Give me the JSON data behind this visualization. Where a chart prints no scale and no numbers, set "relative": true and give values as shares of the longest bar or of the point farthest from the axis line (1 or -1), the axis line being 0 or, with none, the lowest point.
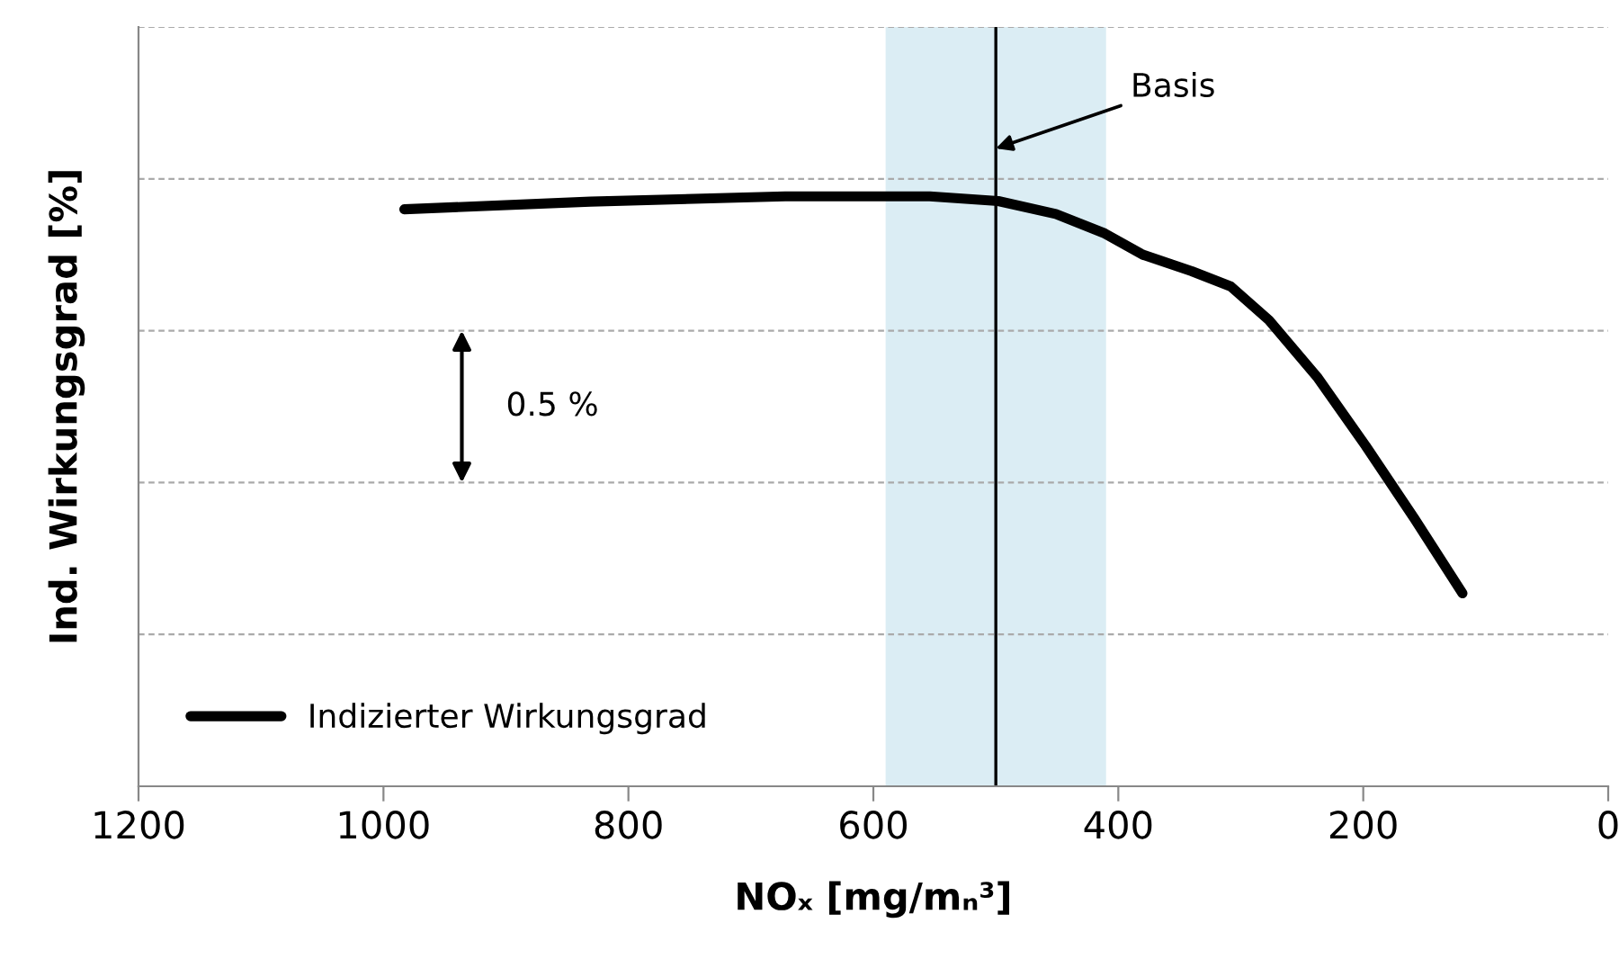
{
  "chart_data": {
    "type": "line",
    "relative": true,
    "xlabel": "NOₓ [mg/mₙ³]",
    "ylabel": "Ind. Wirkungsgrad [%]",
    "x": [
      983,
      831,
      672,
      554,
      498,
      451,
      411,
      380,
      340,
      308,
      277,
      237,
      198,
      158,
      119
    ],
    "series": [
      {
        "name": "Indizierter Wirkungsgrad",
        "color": "#000000",
        "values": [
          0.978,
          0.991,
          1,
          1,
          0.992,
          0.97,
          0.937,
          0.901,
          0.873,
          0.847,
          0.79,
          0.692,
          0.577,
          0.453,
          0.327
        ]
      }
    ],
    "xlim": [
      1200,
      0
    ],
    "xticks": [
      1200,
      1000,
      800,
      600,
      400,
      200,
      0
    ],
    "ref_lines": [
      {
        "axis": "x",
        "value": 500,
        "label": "Basis",
        "color": "#000000"
      }
    ],
    "bands": [
      {
        "axis": "x",
        "from": 590,
        "to": 410,
        "color": "#dbedf4"
      }
    ],
    "annotations": [
      "0.5 %"
    ],
    "grid": "y",
    "legend": "bottom left",
    "marker": "none",
    "line_style": "solid"
  }
}
